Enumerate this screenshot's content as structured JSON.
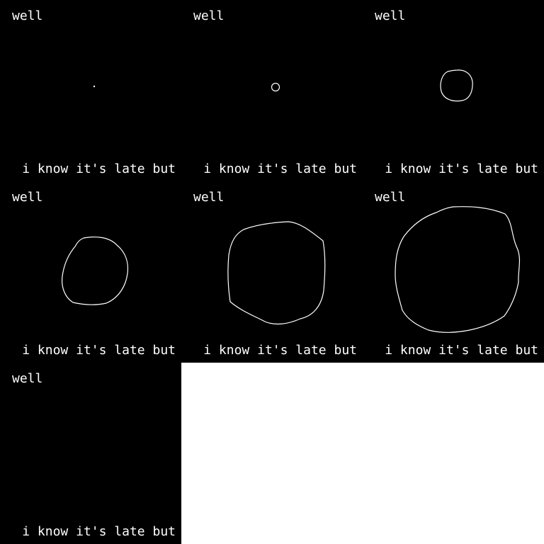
{
  "background_color": "#ffffff",
  "frame_color": "#000000",
  "text_color": "#ffffff",
  "frames": [
    {
      "top_text": "well",
      "bottom_text": "i know it's late but",
      "shape": "dot"
    },
    {
      "top_text": "well",
      "bottom_text": "i know it's late but",
      "shape": "small-circle"
    },
    {
      "top_text": "well",
      "bottom_text": "i know it's late but",
      "shape": "circle"
    },
    {
      "top_text": "well",
      "bottom_text": "i know it's late but",
      "shape": "medium-blob"
    },
    {
      "top_text": "well",
      "bottom_text": "i know it's late but",
      "shape": "large-blob"
    },
    {
      "top_text": "well",
      "bottom_text": "i know it's late but",
      "shape": "largest-blob"
    },
    {
      "top_text": "well",
      "bottom_text": "i know it's late but",
      "shape": "none"
    }
  ]
}
